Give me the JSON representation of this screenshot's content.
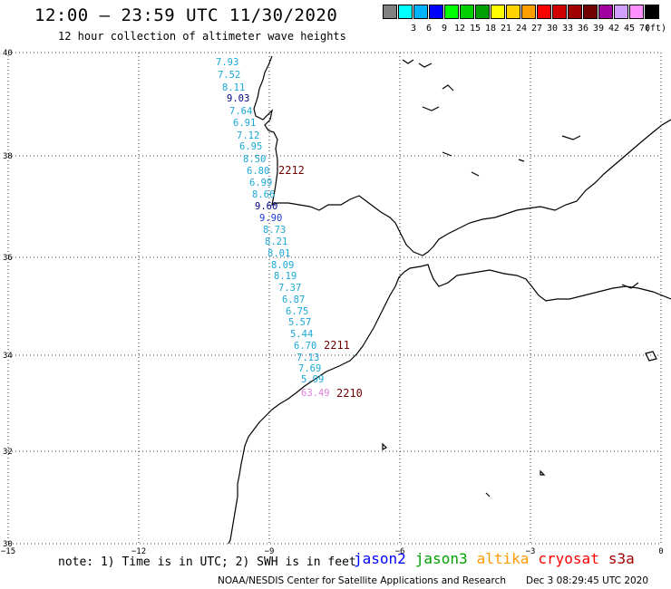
{
  "header": {
    "title": "12:00 – 23:59 UTC 11/30/2020",
    "subtitle": "12 hour collection of altimeter wave heights"
  },
  "legend": {
    "unit": "(ft)",
    "swatches": [
      {
        "label": "",
        "color": "#808080"
      },
      {
        "label": "3",
        "color": "#00ffff"
      },
      {
        "label": "6",
        "color": "#00b4ff"
      },
      {
        "label": "9",
        "color": "#0000ff"
      },
      {
        "label": "12",
        "color": "#00ff00"
      },
      {
        "label": "15",
        "color": "#00d000"
      },
      {
        "label": "18",
        "color": "#00a000"
      },
      {
        "label": "21",
        "color": "#ffff00"
      },
      {
        "label": "24",
        "color": "#ffd200"
      },
      {
        "label": "27",
        "color": "#ffa000"
      },
      {
        "label": "30",
        "color": "#ff0000"
      },
      {
        "label": "33",
        "color": "#d00000"
      },
      {
        "label": "36",
        "color": "#a00000"
      },
      {
        "label": "39",
        "color": "#700000"
      },
      {
        "label": "42",
        "color": "#a000a0"
      },
      {
        "label": "45",
        "color": "#d0a0ff"
      },
      {
        "label": "70",
        "color": "#ff90ff"
      },
      {
        "label": "",
        "color": "#000000"
      }
    ]
  },
  "map": {
    "lat_ticks": [
      "40",
      "38",
      "36",
      "34",
      "32",
      "30"
    ],
    "lon_ticks": [
      "−15",
      "−12",
      "−9",
      "−6",
      "−3",
      "0"
    ],
    "grid": "dotted"
  },
  "wave_heights": [
    {
      "value": "7.93",
      "color": "#1aa8d8"
    },
    {
      "value": "7.52",
      "color": "#1aa8d8"
    },
    {
      "value": "8.11",
      "color": "#1aa8d8"
    },
    {
      "value": "9.03",
      "color": "#000080"
    },
    {
      "value": "7.64",
      "color": "#1aa8d8"
    },
    {
      "value": "6.91",
      "color": "#1aa8d8"
    },
    {
      "value": "7.12",
      "color": "#1aa8d8"
    },
    {
      "value": "6.95",
      "color": "#1aa8d8"
    },
    {
      "value": "8.50",
      "color": "#1aa8d8"
    },
    {
      "value": "6.80",
      "color": "#1aa8d8"
    },
    {
      "value": "6.99",
      "color": "#1aa8d8"
    },
    {
      "value": "8.66",
      "color": "#1aa8d8"
    },
    {
      "value": "9.60",
      "color": "#000080"
    },
    {
      "value": "9.90",
      "color": "#1a3ad8"
    },
    {
      "value": "8.73",
      "color": "#1aa8d8"
    },
    {
      "value": "8.21",
      "color": "#1aa8d8"
    },
    {
      "value": "8.01",
      "color": "#1aa8d8"
    },
    {
      "value": "8.09",
      "color": "#1aa8d8"
    },
    {
      "value": "8.19",
      "color": "#1aa8d8"
    },
    {
      "value": "7.37",
      "color": "#1aa8d8"
    },
    {
      "value": "6.87",
      "color": "#1aa8d8"
    },
    {
      "value": "6.75",
      "color": "#1aa8d8"
    },
    {
      "value": "5.57",
      "color": "#1aa8d8"
    },
    {
      "value": "5.44",
      "color": "#1aa8d8"
    },
    {
      "value": "6.70",
      "color": "#1aa8d8"
    },
    {
      "value": "7.13",
      "color": "#1aa8d8"
    },
    {
      "value": "7.69",
      "color": "#1aa8d8"
    },
    {
      "value": "5.99",
      "color": "#1aa8d8"
    },
    {
      "value": "63.49",
      "color": "#e080e0"
    }
  ],
  "pass_times": [
    {
      "label": "2212",
      "color": "#700000"
    },
    {
      "label": "2211",
      "color": "#700000"
    },
    {
      "label": "2210",
      "color": "#700000"
    }
  ],
  "footer": {
    "note": "note: 1) Time is in UTC; 2) SWH is in feet",
    "satellites": [
      {
        "name": "jason2",
        "color": "#0000ff"
      },
      {
        "name": "jason3",
        "color": "#00a000"
      },
      {
        "name": "altika",
        "color": "#ff9900"
      },
      {
        "name": "cryosat",
        "color": "#ff0000"
      },
      {
        "name": "s3a",
        "color": "#a00000"
      }
    ],
    "credit": "NOAA/NESDIS Center for Satellite Applications and Research",
    "timestamp": "Dec  3 08:29:45 UTC 2020"
  }
}
